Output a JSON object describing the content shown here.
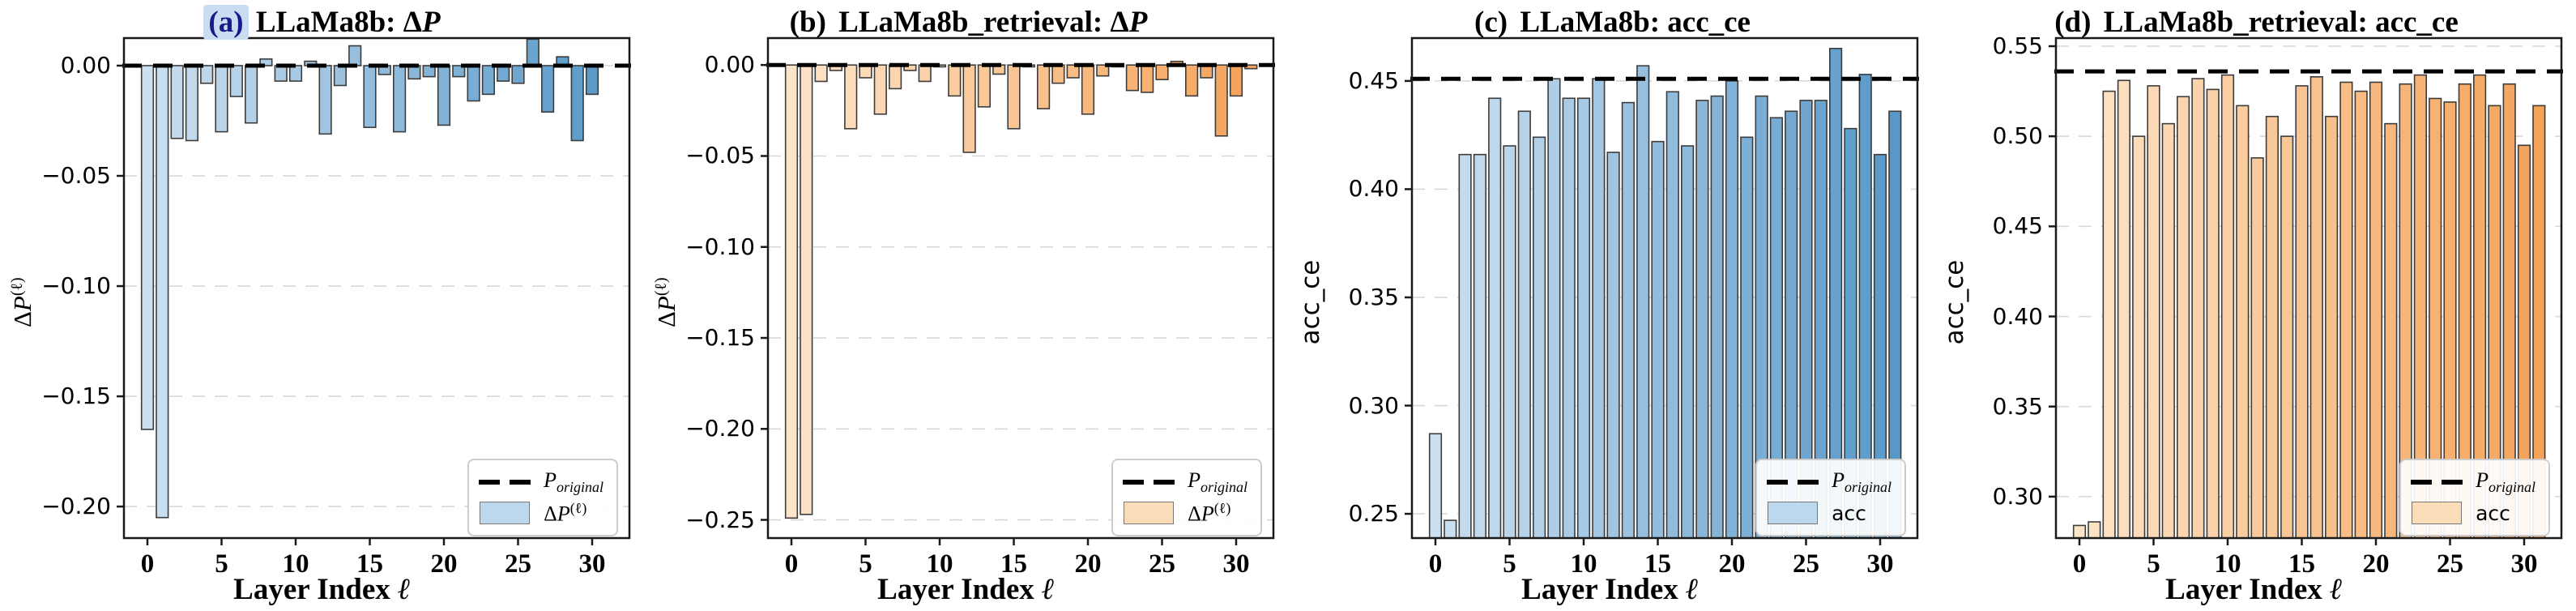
{
  "figure": {
    "x_label_text": "Layer Index",
    "x_label_symbol": "ℓ",
    "x_ticks": [
      0,
      5,
      10,
      15,
      20,
      25,
      30
    ],
    "legend": {
      "line_label_main": "P",
      "line_label_sub": "original",
      "delta_label_pre": "Δ",
      "delta_label_main": "P",
      "delta_label_sup": "(ℓ)",
      "acc_label": "acc"
    },
    "colors": {
      "blue_start": "#cde0f0",
      "blue_end": "#5898c8",
      "orange_start": "#fce4c8",
      "orange_end": "#f5a259",
      "bar_edge": "#3c3c3c",
      "grid": "#d8d8d8",
      "dash_line": "#000000",
      "spine": "#1a1a1a",
      "tag_highlight": "#c9ddf2"
    }
  },
  "chart_data": [
    {
      "type": "bar",
      "panel": "a",
      "title_tag": "(a)",
      "title_name": "LLaMa8b:",
      "title_math": "ΔP",
      "title_math_kind": "deltaP",
      "tag_highlighted": true,
      "palette": "blue",
      "ylabel_kind": "deltaP",
      "ylabel_text": "ΔP",
      "ylabel_sup": "(ℓ)",
      "legend_entries": [
        "p_original",
        "deltaP"
      ],
      "ylim": [
        -0.2143,
        0.0125
      ],
      "yticks": [
        0.0,
        -0.05,
        -0.1,
        -0.15,
        -0.2
      ],
      "dash_value": 0.0,
      "baseline": "zero",
      "x": [
        0,
        1,
        2,
        3,
        4,
        5,
        6,
        7,
        8,
        9,
        10,
        11,
        12,
        13,
        14,
        15,
        16,
        17,
        18,
        19,
        20,
        21,
        22,
        23,
        24,
        25,
        26,
        27,
        28,
        29,
        30,
        31
      ],
      "values": [
        -0.165,
        -0.205,
        -0.033,
        -0.034,
        -0.008,
        -0.03,
        -0.014,
        -0.026,
        0.003,
        -0.007,
        -0.007,
        0.002,
        -0.031,
        -0.009,
        0.009,
        -0.028,
        -0.004,
        -0.03,
        -0.006,
        -0.005,
        -0.027,
        -0.005,
        -0.016,
        -0.013,
        -0.007,
        -0.008,
        0.012,
        -0.021,
        0.004,
        -0.034,
        -0.013,
        0.0
      ]
    },
    {
      "type": "bar",
      "panel": "b",
      "title_tag": "(b)",
      "title_name": "LLaMa8b_retrieval:",
      "title_math": "ΔP",
      "title_math_kind": "deltaP",
      "tag_highlighted": false,
      "palette": "orange",
      "ylabel_kind": "deltaP",
      "ylabel_text": "ΔP",
      "ylabel_sup": "(ℓ)",
      "legend_entries": [
        "p_original",
        "deltaP"
      ],
      "ylim": [
        -0.26,
        0.0148
      ],
      "yticks": [
        0.0,
        -0.05,
        -0.1,
        -0.15,
        -0.2,
        -0.25
      ],
      "dash_value": 0.0,
      "baseline": "zero",
      "x": [
        0,
        1,
        2,
        3,
        4,
        5,
        6,
        7,
        8,
        9,
        10,
        11,
        12,
        13,
        14,
        15,
        16,
        17,
        18,
        19,
        20,
        21,
        22,
        23,
        24,
        25,
        26,
        27,
        28,
        29,
        30,
        31
      ],
      "values": [
        -0.249,
        -0.247,
        -0.009,
        -0.003,
        -0.035,
        -0.007,
        -0.027,
        -0.013,
        -0.003,
        -0.009,
        -0.001,
        -0.017,
        -0.048,
        -0.023,
        -0.005,
        -0.035,
        -0.001,
        -0.024,
        -0.01,
        -0.007,
        -0.027,
        -0.006,
        -0.001,
        -0.014,
        -0.015,
        -0.008,
        0.002,
        -0.017,
        -0.007,
        -0.039,
        -0.017,
        -0.002
      ]
    },
    {
      "type": "bar",
      "panel": "c",
      "title_tag": "(c)",
      "title_name": "LLaMa8b:",
      "title_math": "acc_ce",
      "title_math_kind": "plain",
      "tag_highlighted": false,
      "palette": "blue",
      "ylabel_kind": "plain",
      "ylabel_text": "acc_ce",
      "ylabel_sup": "",
      "legend_entries": [
        "p_original",
        "acc"
      ],
      "ylim": [
        0.2388,
        0.4698
      ],
      "yticks": [
        0.45,
        0.4,
        0.35,
        0.3,
        0.25
      ],
      "dash_value": 0.451,
      "baseline": "bottom",
      "x": [
        0,
        1,
        2,
        3,
        4,
        5,
        6,
        7,
        8,
        9,
        10,
        11,
        12,
        13,
        14,
        15,
        16,
        17,
        18,
        19,
        20,
        21,
        22,
        23,
        24,
        25,
        26,
        27,
        28,
        29,
        30,
        31
      ],
      "values": [
        0.287,
        0.247,
        0.416,
        0.416,
        0.442,
        0.42,
        0.436,
        0.424,
        0.451,
        0.442,
        0.442,
        0.451,
        0.417,
        0.44,
        0.457,
        0.422,
        0.445,
        0.42,
        0.441,
        0.443,
        0.45,
        0.424,
        0.443,
        0.433,
        0.436,
        0.441,
        0.441,
        0.465,
        0.428,
        0.453,
        0.416,
        0.436
      ]
    },
    {
      "type": "bar",
      "panel": "d",
      "title_tag": "(d)",
      "title_name": "LLaMa8b_retrieval:",
      "title_math": "acc_ce",
      "title_math_kind": "plain",
      "tag_highlighted": false,
      "palette": "orange",
      "ylabel_kind": "plain",
      "ylabel_text": "acc_ce",
      "ylabel_sup": "",
      "legend_entries": [
        "p_original",
        "acc"
      ],
      "ylim": [
        0.277,
        0.5545
      ],
      "yticks": [
        0.55,
        0.5,
        0.45,
        0.4,
        0.35,
        0.3
      ],
      "dash_value": 0.536,
      "baseline": "bottom",
      "x": [
        0,
        1,
        2,
        3,
        4,
        5,
        6,
        7,
        8,
        9,
        10,
        11,
        12,
        13,
        14,
        15,
        16,
        17,
        18,
        19,
        20,
        21,
        22,
        23,
        24,
        25,
        26,
        27,
        28,
        29,
        30,
        31
      ],
      "values": [
        0.284,
        0.286,
        0.525,
        0.531,
        0.5,
        0.528,
        0.507,
        0.522,
        0.532,
        0.526,
        0.534,
        0.517,
        0.488,
        0.511,
        0.5,
        0.528,
        0.533,
        0.511,
        0.53,
        0.525,
        0.53,
        0.507,
        0.529,
        0.534,
        0.521,
        0.519,
        0.529,
        0.534,
        0.517,
        0.529,
        0.495,
        0.517
      ]
    }
  ]
}
